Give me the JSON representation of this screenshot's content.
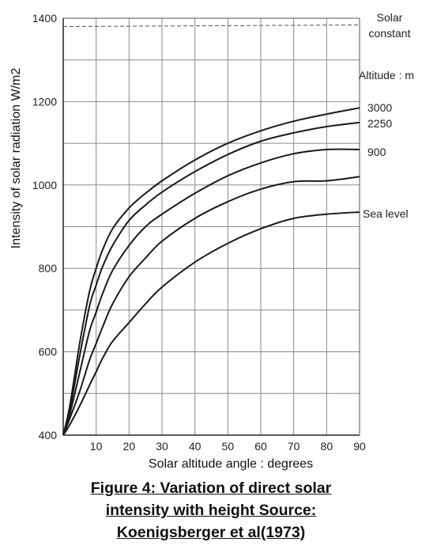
{
  "chart_data": {
    "type": "line",
    "title": "",
    "xlabel": "Solar altitude angle : degrees",
    "ylabel": "Intensity of solar radiation W/m2",
    "xlim": [
      0,
      90
    ],
    "ylim": [
      400,
      1400
    ],
    "x_ticks": [
      "10",
      "20",
      "30",
      "40",
      "50",
      "60",
      "70",
      "80",
      "90"
    ],
    "y_ticks": [
      "400",
      "600",
      "800",
      "1000",
      "1200",
      "1400"
    ],
    "grid": true,
    "legend_title": "Altitude : m",
    "reference_line": {
      "label_line1": "Solar",
      "label_line2": "constant",
      "value": 1380,
      "style": "dashed"
    },
    "x": [
      0,
      2,
      5,
      8,
      10,
      12,
      15,
      20,
      25,
      30,
      40,
      50,
      60,
      70,
      80,
      90
    ],
    "series": [
      {
        "name": "3000",
        "values": [
          400,
          470,
          620,
          745,
          800,
          845,
          895,
          945,
          980,
          1010,
          1060,
          1100,
          1130,
          1153,
          1170,
          1185
        ]
      },
      {
        "name": "2250",
        "values": [
          400,
          460,
          590,
          710,
          760,
          805,
          855,
          915,
          952,
          983,
          1032,
          1073,
          1105,
          1125,
          1140,
          1150
        ]
      },
      {
        "name": "900",
        "values": [
          400,
          450,
          550,
          650,
          695,
          740,
          795,
          855,
          900,
          930,
          980,
          1022,
          1053,
          1075,
          1085,
          1085
        ]
      },
      {
        "name": "Sea level",
        "values": [
          400,
          440,
          505,
          580,
          620,
          660,
          715,
          780,
          825,
          865,
          920,
          960,
          990,
          1008,
          1010,
          1020
        ]
      },
      {
        "name": "",
        "values": [
          400,
          425,
          470,
          520,
          552,
          585,
          625,
          670,
          715,
          755,
          815,
          860,
          895,
          920,
          930,
          935
        ]
      }
    ]
  },
  "caption": {
    "line1": "Figure 4: Variation of direct solar",
    "line2": "intensity with height Source:",
    "line3": "Koenigsberger et al(1973)"
  }
}
